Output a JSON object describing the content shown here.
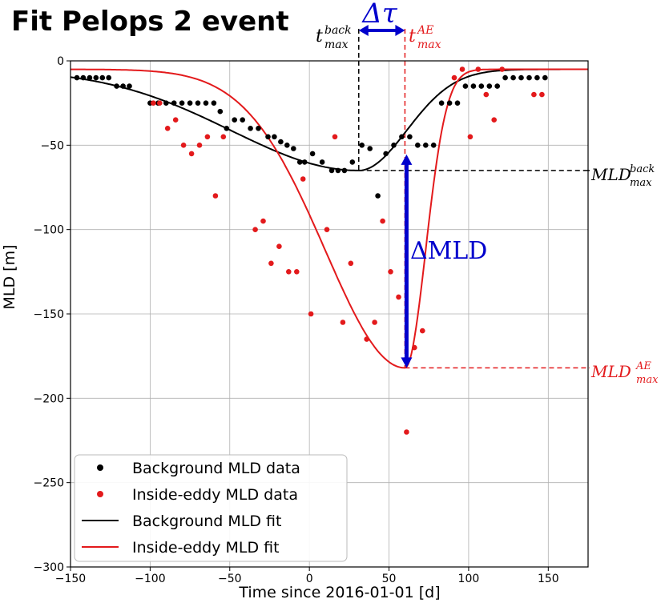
{
  "chart_data": {
    "type": "scatter",
    "title": "Fit Pelops 2 event",
    "xlabel": "Time since 2016-01-01  [d]",
    "ylabel": "MLD [m]",
    "xlim": [
      -150,
      175
    ],
    "ylim": [
      -300,
      0
    ],
    "xticks": [
      -150,
      -100,
      -50,
      0,
      50,
      100,
      150
    ],
    "yticks": [
      0,
      -50,
      -100,
      -150,
      -200,
      -250,
      -300
    ],
    "xtick_labels": [
      "−150",
      "−100",
      "−50",
      "0",
      "50",
      "100",
      "150"
    ],
    "ytick_labels": [
      "0",
      "−50",
      "−100",
      "−150",
      "−200",
      "−250",
      "−300"
    ],
    "grid": true,
    "legend_position": "lower-left",
    "series": [
      {
        "name": "Background MLD data",
        "kind": "scatter",
        "color": "#000000",
        "points": [
          [
            -146,
            -10
          ],
          [
            -142,
            -10
          ],
          [
            -138,
            -10
          ],
          [
            -134,
            -10
          ],
          [
            -130,
            -10
          ],
          [
            -126,
            -10
          ],
          [
            -121,
            -15
          ],
          [
            -117,
            -15
          ],
          [
            -113,
            -15
          ],
          [
            -100,
            -25
          ],
          [
            -95,
            -25
          ],
          [
            -90,
            -25
          ],
          [
            -85,
            -25
          ],
          [
            -80,
            -25
          ],
          [
            -75,
            -25
          ],
          [
            -70,
            -25
          ],
          [
            -65,
            -25
          ],
          [
            -60,
            -25
          ],
          [
            -56,
            -30
          ],
          [
            -52,
            -40
          ],
          [
            -47,
            -35
          ],
          [
            -42,
            -35
          ],
          [
            -37,
            -40
          ],
          [
            -32,
            -40
          ],
          [
            -26,
            -45
          ],
          [
            -22,
            -45
          ],
          [
            -18,
            -48
          ],
          [
            -14,
            -50
          ],
          [
            -10,
            -52
          ],
          [
            -6,
            -60
          ],
          [
            -3,
            -60
          ],
          [
            2,
            -55
          ],
          [
            8,
            -60
          ],
          [
            14,
            -65
          ],
          [
            18,
            -65
          ],
          [
            22,
            -65
          ],
          [
            27,
            -60
          ],
          [
            33,
            -50
          ],
          [
            38,
            -52
          ],
          [
            43,
            -80
          ],
          [
            48,
            -55
          ],
          [
            53,
            -50
          ],
          [
            58,
            -45
          ],
          [
            63,
            -45
          ],
          [
            68,
            -50
          ],
          [
            73,
            -50
          ],
          [
            78,
            -50
          ],
          [
            83,
            -25
          ],
          [
            88,
            -25
          ],
          [
            93,
            -25
          ],
          [
            98,
            -15
          ],
          [
            103,
            -15
          ],
          [
            108,
            -15
          ],
          [
            113,
            -15
          ],
          [
            118,
            -15
          ],
          [
            123,
            -10
          ],
          [
            128,
            -10
          ],
          [
            133,
            -10
          ],
          [
            138,
            -10
          ],
          [
            143,
            -10
          ],
          [
            148,
            -10
          ]
        ]
      },
      {
        "name": "Inside-eddy MLD data",
        "kind": "scatter",
        "color": "#e31a1c",
        "points": [
          [
            -98,
            -25
          ],
          [
            -94,
            -25
          ],
          [
            -89,
            -40
          ],
          [
            -84,
            -35
          ],
          [
            -79,
            -50
          ],
          [
            -74,
            -55
          ],
          [
            -69,
            -50
          ],
          [
            -64,
            -45
          ],
          [
            -59,
            -80
          ],
          [
            -54,
            -45
          ],
          [
            -34,
            -100
          ],
          [
            -29,
            -95
          ],
          [
            -24,
            -120
          ],
          [
            -19,
            -110
          ],
          [
            -13,
            -125
          ],
          [
            -8,
            -125
          ],
          [
            -4,
            -70
          ],
          [
            1,
            -150
          ],
          [
            11,
            -100
          ],
          [
            16,
            -45
          ],
          [
            21,
            -155
          ],
          [
            26,
            -120
          ],
          [
            36,
            -165
          ],
          [
            41,
            -155
          ],
          [
            46,
            -95
          ],
          [
            51,
            -125
          ],
          [
            56,
            -140
          ],
          [
            61,
            -220
          ],
          [
            66,
            -170
          ],
          [
            71,
            -160
          ],
          [
            91,
            -10
          ],
          [
            96,
            -5
          ],
          [
            101,
            -45
          ],
          [
            106,
            -5
          ],
          [
            111,
            -20
          ],
          [
            116,
            -35
          ],
          [
            121,
            -5
          ],
          [
            141,
            -20
          ],
          [
            146,
            -20
          ]
        ]
      },
      {
        "name": "Background MLD fit",
        "kind": "line",
        "color": "#000000",
        "peak_time": 31,
        "peak_depth": -65,
        "baseline": -5,
        "sigma_left": 80,
        "sigma_right": 30
      },
      {
        "name": "Inside-eddy MLD fit",
        "kind": "line",
        "color": "#e31a1c",
        "peak_time": 60,
        "peak_depth": -182,
        "baseline": -5,
        "sigma_left": 50,
        "sigma_right": 13
      }
    ],
    "annotations": {
      "delta_tau": "Δτ",
      "t_back_base": "t",
      "t_back_sup": "back",
      "t_back_sub": "max",
      "t_ae_base": "t",
      "t_ae_sup": "AE",
      "t_ae_sub": "max",
      "delta_mld": "ΔMLD",
      "mld_back_base": "MLD",
      "mld_back_sup": "back",
      "mld_back_sub": "max",
      "mld_ae_base": "MLD",
      "mld_ae_sup": "AE",
      "mld_ae_sub": "max",
      "annotation_color_blue": "#0000cc",
      "annotation_color_red": "#e31a1c"
    }
  }
}
